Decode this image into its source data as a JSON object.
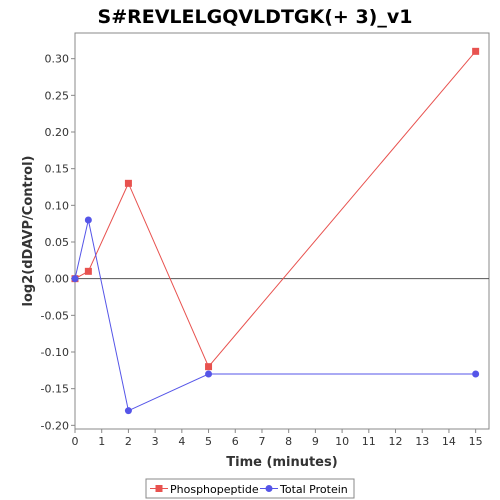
{
  "chart_data": {
    "type": "line",
    "title": "S#REVLELGQVLDTGK(+ 3)_v1",
    "xlabel": "Time (minutes)",
    "ylabel": "log2(dDAVP/Control)",
    "xlim": [
      0,
      15.5
    ],
    "ylim": [
      -0.205,
      0.335
    ],
    "x_ticks": [
      0,
      1,
      2,
      3,
      4,
      5,
      6,
      7,
      8,
      9,
      10,
      11,
      12,
      13,
      14,
      15
    ],
    "y_ticks": [
      -0.2,
      -0.15,
      -0.1,
      -0.05,
      0.0,
      0.05,
      0.1,
      0.15,
      0.2,
      0.25,
      0.3
    ],
    "y_tick_labels": [
      "-0.20",
      "-0.15",
      "-0.10",
      "-0.05",
      "0.00",
      "0.05",
      "0.10",
      "0.15",
      "0.20",
      "0.25",
      "0.30"
    ],
    "zero_line": true,
    "grid": false,
    "legend_position": "bottom",
    "series": [
      {
        "name": "Phosphopeptide",
        "color": "#e8524f",
        "marker": "square",
        "x": [
          0,
          0.5,
          2,
          5,
          15
        ],
        "y": [
          0.0,
          0.01,
          0.13,
          -0.12,
          0.31
        ]
      },
      {
        "name": "Total Protein",
        "color": "#5555e8",
        "marker": "circle",
        "x": [
          0,
          0.5,
          2,
          5,
          15
        ],
        "y": [
          0.0,
          0.08,
          -0.18,
          -0.13,
          -0.13
        ]
      }
    ]
  }
}
